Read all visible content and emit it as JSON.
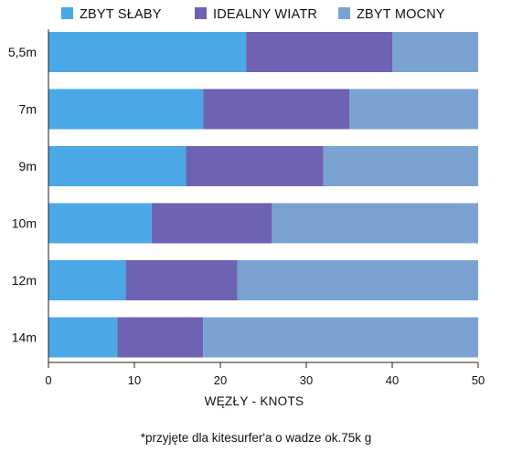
{
  "chart_data": {
    "type": "bar",
    "orientation": "horizontal",
    "stacked": true,
    "categories": [
      "5,5m",
      "7m",
      "9m",
      "10m",
      "12m",
      "14m"
    ],
    "series": [
      {
        "name": "ZBYT SŁABY",
        "color": "#4aa8e6",
        "values": [
          23,
          18,
          16,
          12,
          9,
          8
        ]
      },
      {
        "name": "IDEALNY WIATR",
        "color": "#6e62b2",
        "values": [
          17,
          17,
          16,
          14,
          13,
          10
        ]
      },
      {
        "name": "ZBYT MOCNY",
        "color": "#7aa3d2",
        "values": [
          10,
          15,
          18,
          24,
          28,
          32
        ]
      }
    ],
    "xlabel": "WĘZŁY - KNOTS",
    "xlim": [
      0,
      50
    ],
    "xticks": [
      0,
      10,
      20,
      30,
      40,
      50
    ],
    "legend_position": "top",
    "grid": false,
    "footnote": "*przyjęte dla kitesurfer'a o wadze ok.75k g"
  }
}
